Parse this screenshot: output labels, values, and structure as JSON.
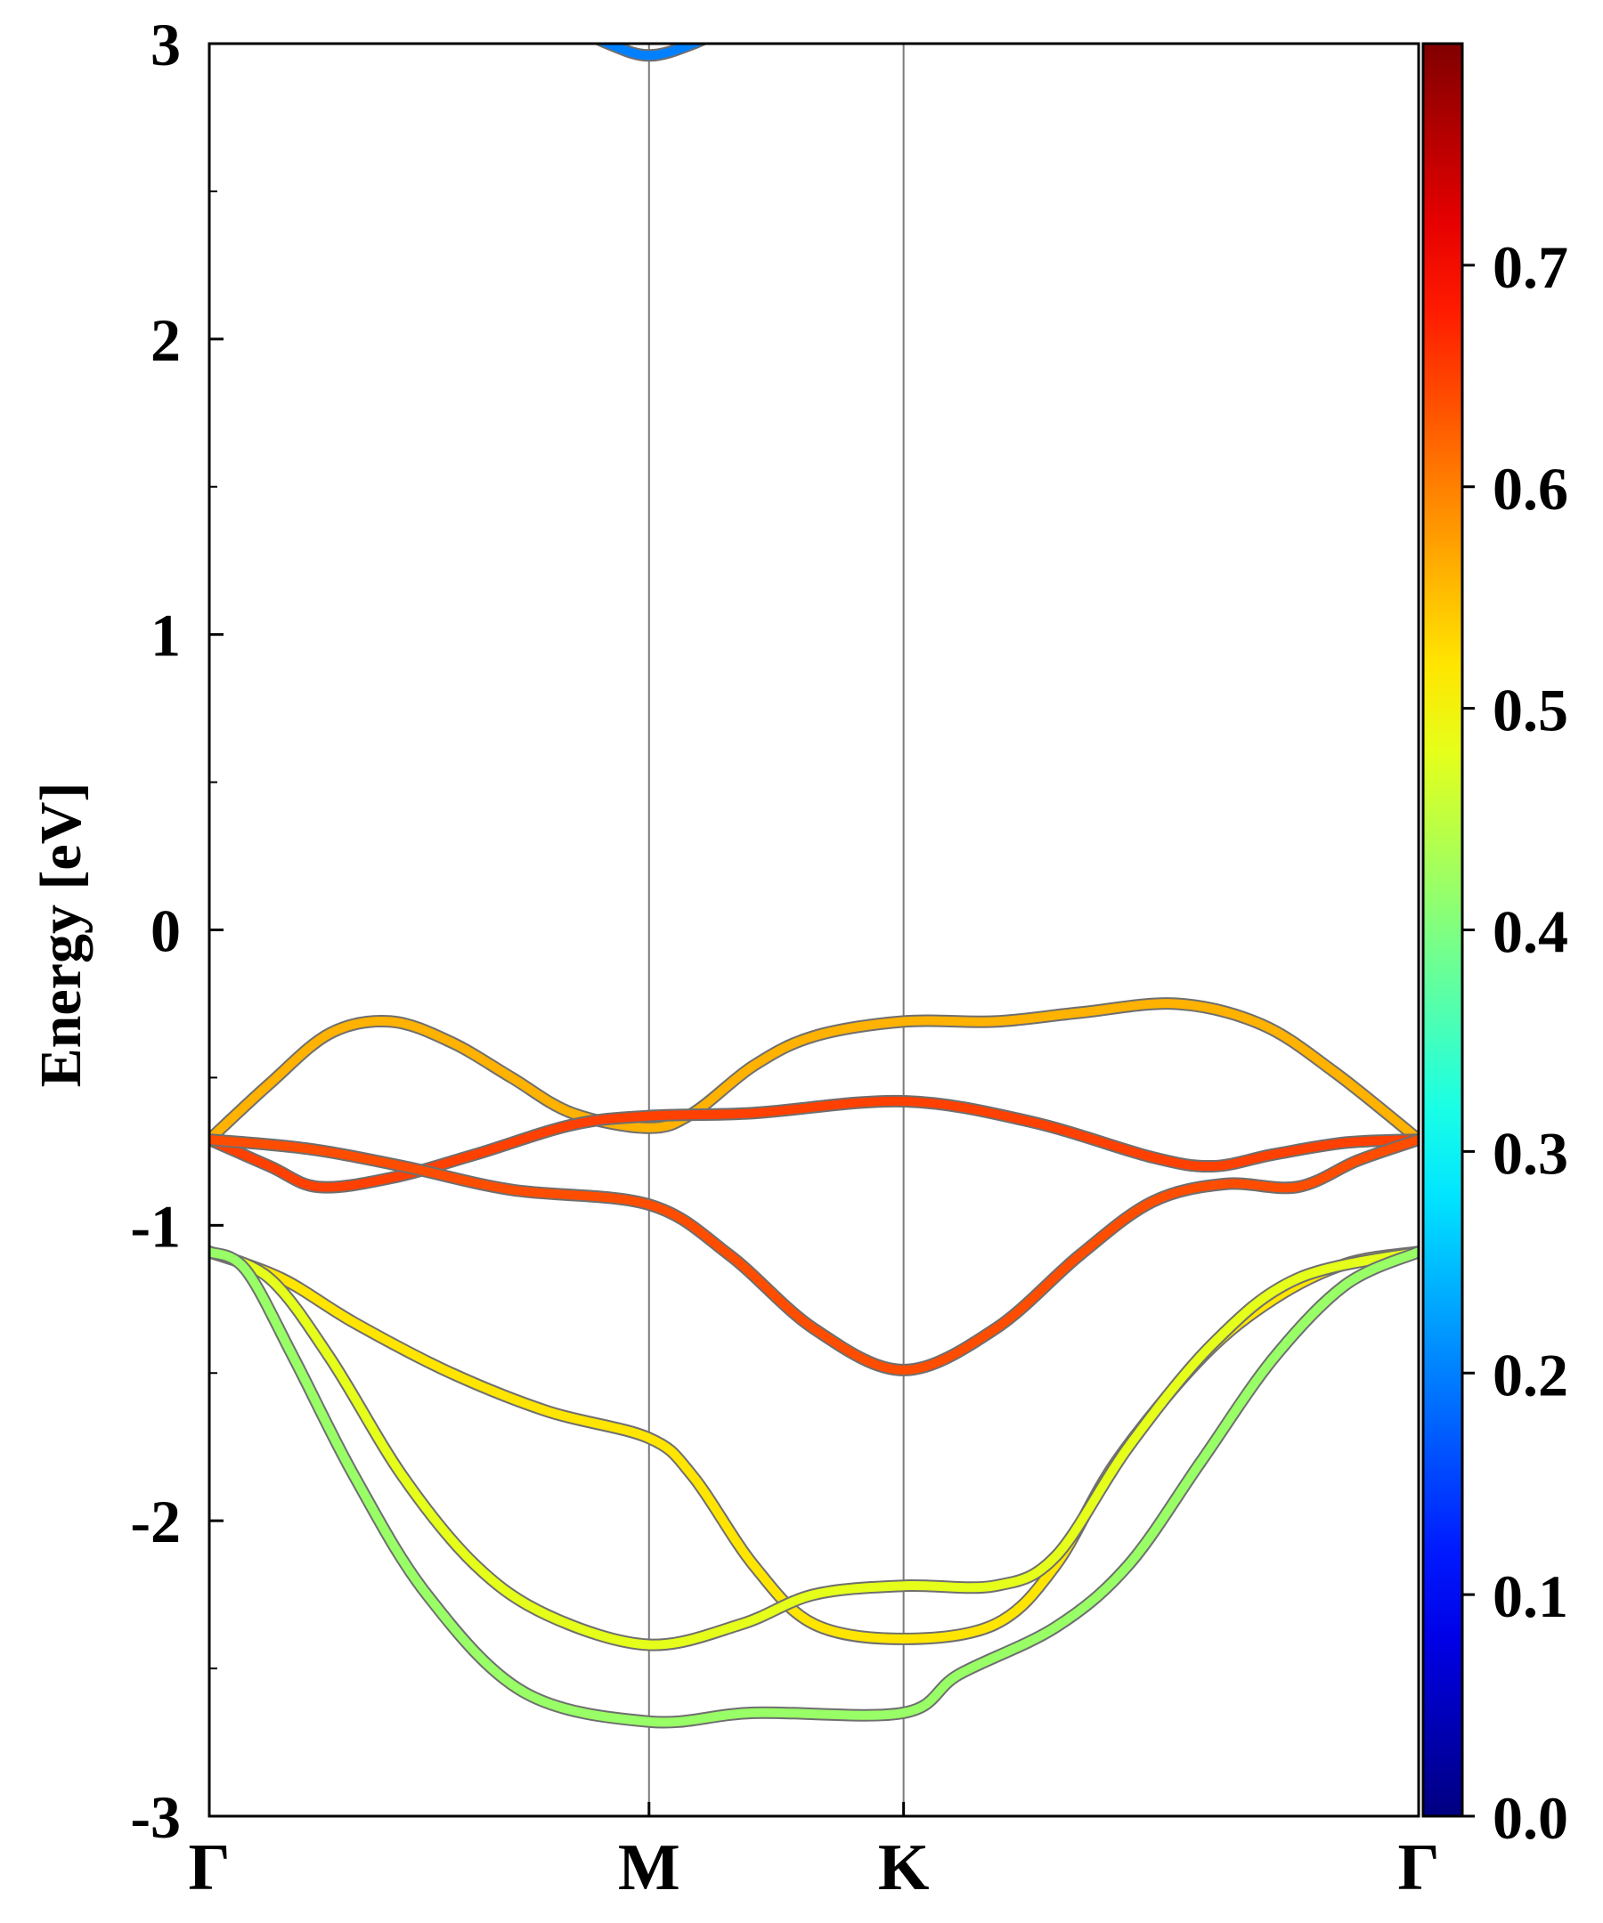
{
  "chart_data": {
    "type": "line",
    "title": "",
    "xlabel": "",
    "ylabel": "Energy [eV]",
    "x_range": [
      0,
      1
    ],
    "ylim": [
      -3,
      3
    ],
    "y_ticks": [
      -3,
      -2,
      -1,
      0,
      1,
      2,
      3
    ],
    "y_tick_labels": [
      "-3",
      "-2",
      "-1",
      "0",
      "1",
      "2",
      "3"
    ],
    "k_points": [
      {
        "label": "Γ",
        "x": 0.0
      },
      {
        "label": "M",
        "x": 0.3636
      },
      {
        "label": "K",
        "x": 0.5741
      },
      {
        "label": "Γ",
        "x": 1.0
      }
    ],
    "grid": false,
    "colorbar": {
      "colormap": "jet",
      "range": [
        0.0,
        0.8
      ],
      "ticks": [
        0.0,
        0.1,
        0.2,
        0.3,
        0.4,
        0.5,
        0.6,
        0.7
      ],
      "tick_labels": [
        "0.0",
        "0.1",
        "0.2",
        "0.3",
        "0.4",
        "0.5",
        "0.6",
        "0.7"
      ],
      "placement": "right"
    },
    "series": [
      {
        "points": [
          [
            0.29,
            3.08
          ],
          [
            0.33,
            3.0
          ],
          [
            0.3636,
            2.96
          ],
          [
            0.4,
            3.0
          ],
          [
            0.44,
            3.08
          ]
        ],
        "weight": 0.2
      },
      {
        "points": [
          [
            0.0,
            -0.71
          ],
          [
            0.05,
            -0.52
          ],
          [
            0.1,
            -0.35
          ],
          [
            0.15,
            -0.31
          ],
          [
            0.2,
            -0.38
          ],
          [
            0.25,
            -0.5
          ],
          [
            0.3,
            -0.62
          ],
          [
            0.3636,
            -0.67
          ],
          [
            0.4,
            -0.62
          ],
          [
            0.45,
            -0.46
          ],
          [
            0.5,
            -0.36
          ],
          [
            0.5741,
            -0.31
          ],
          [
            0.65,
            -0.31
          ],
          [
            0.72,
            -0.28
          ],
          [
            0.8,
            -0.25
          ],
          [
            0.87,
            -0.32
          ],
          [
            0.93,
            -0.48
          ],
          [
            1.0,
            -0.71
          ]
        ],
        "weight": 0.56
      },
      {
        "points": [
          [
            0.0,
            -0.71
          ],
          [
            0.05,
            -0.8
          ],
          [
            0.09,
            -0.87
          ],
          [
            0.15,
            -0.84
          ],
          [
            0.22,
            -0.76
          ],
          [
            0.3,
            -0.66
          ],
          [
            0.3636,
            -0.63
          ],
          [
            0.45,
            -0.62
          ],
          [
            0.5741,
            -0.58
          ],
          [
            0.68,
            -0.65
          ],
          [
            0.78,
            -0.77
          ],
          [
            0.83,
            -0.8
          ],
          [
            0.88,
            -0.76
          ],
          [
            0.94,
            -0.72
          ],
          [
            1.0,
            -0.71
          ]
        ],
        "weight": 0.65
      },
      {
        "points": [
          [
            0.0,
            -0.71
          ],
          [
            0.08,
            -0.74
          ],
          [
            0.16,
            -0.8
          ],
          [
            0.25,
            -0.88
          ],
          [
            0.3636,
            -0.93
          ],
          [
            0.43,
            -1.1
          ],
          [
            0.5,
            -1.35
          ],
          [
            0.5741,
            -1.49
          ],
          [
            0.65,
            -1.35
          ],
          [
            0.72,
            -1.1
          ],
          [
            0.78,
            -0.92
          ],
          [
            0.84,
            -0.86
          ],
          [
            0.9,
            -0.87
          ],
          [
            0.95,
            -0.78
          ],
          [
            1.0,
            -0.71
          ]
        ],
        "weight": 0.64
      },
      {
        "points": [
          [
            0.0,
            -1.09
          ],
          [
            0.06,
            -1.18
          ],
          [
            0.12,
            -1.33
          ],
          [
            0.2,
            -1.5
          ],
          [
            0.28,
            -1.63
          ],
          [
            0.3636,
            -1.72
          ],
          [
            0.4,
            -1.85
          ],
          [
            0.45,
            -2.15
          ],
          [
            0.5,
            -2.35
          ],
          [
            0.5741,
            -2.4
          ],
          [
            0.65,
            -2.35
          ],
          [
            0.7,
            -2.15
          ],
          [
            0.75,
            -1.8
          ],
          [
            0.82,
            -1.45
          ],
          [
            0.88,
            -1.25
          ],
          [
            0.94,
            -1.13
          ],
          [
            1.0,
            -1.09
          ]
        ],
        "weight": 0.52
      },
      {
        "points": [
          [
            0.0,
            -1.09
          ],
          [
            0.05,
            -1.18
          ],
          [
            0.1,
            -1.45
          ],
          [
            0.16,
            -1.85
          ],
          [
            0.22,
            -2.15
          ],
          [
            0.28,
            -2.32
          ],
          [
            0.3636,
            -2.42
          ],
          [
            0.44,
            -2.35
          ],
          [
            0.5,
            -2.25
          ],
          [
            0.5741,
            -2.22
          ],
          [
            0.65,
            -2.22
          ],
          [
            0.7,
            -2.12
          ],
          [
            0.76,
            -1.75
          ],
          [
            0.83,
            -1.4
          ],
          [
            0.9,
            -1.18
          ],
          [
            1.0,
            -1.09
          ]
        ],
        "weight": 0.48
      },
      {
        "points": [
          [
            0.0,
            -1.09
          ],
          [
            0.03,
            -1.15
          ],
          [
            0.07,
            -1.45
          ],
          [
            0.12,
            -1.85
          ],
          [
            0.18,
            -2.25
          ],
          [
            0.26,
            -2.58
          ],
          [
            0.3636,
            -2.68
          ],
          [
            0.45,
            -2.65
          ],
          [
            0.5741,
            -2.65
          ],
          [
            0.62,
            -2.52
          ],
          [
            0.7,
            -2.36
          ],
          [
            0.76,
            -2.15
          ],
          [
            0.82,
            -1.8
          ],
          [
            0.88,
            -1.45
          ],
          [
            0.94,
            -1.2
          ],
          [
            1.0,
            -1.09
          ]
        ],
        "weight": 0.42
      }
    ]
  }
}
